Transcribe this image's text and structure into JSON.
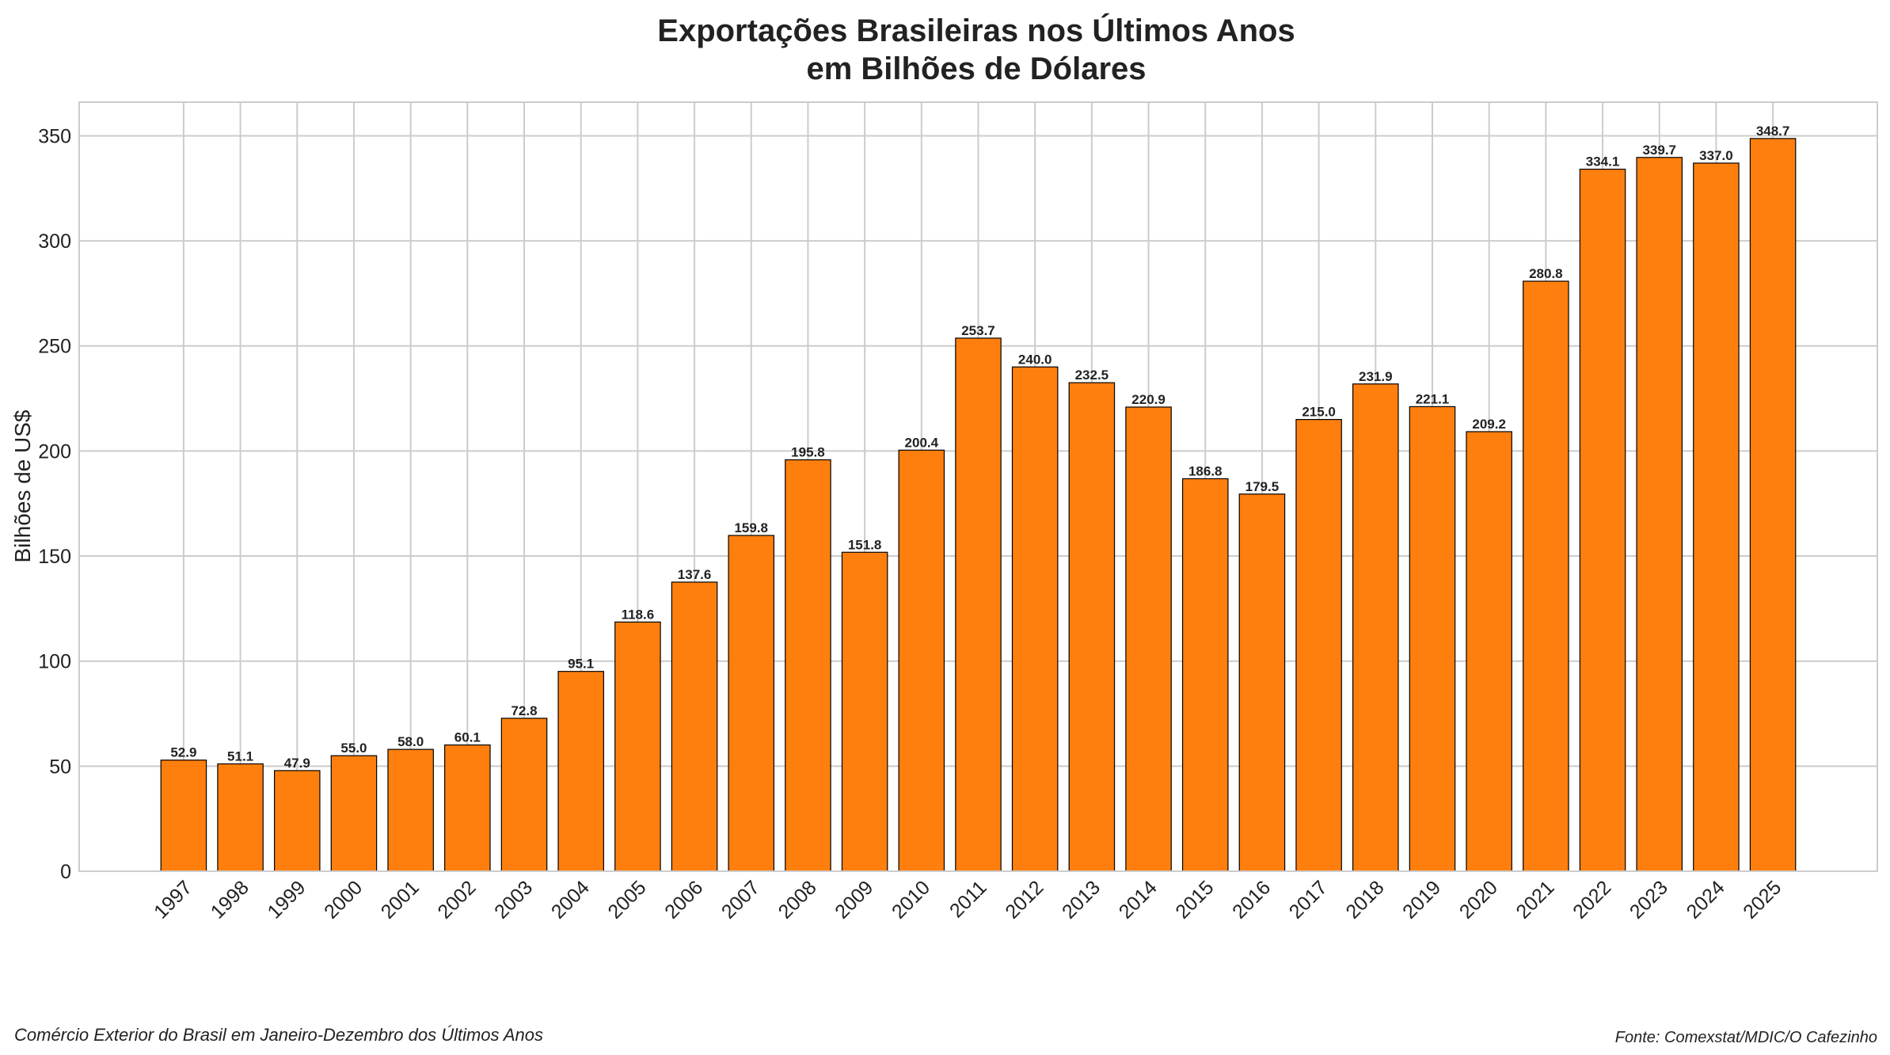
{
  "chart_data": {
    "type": "bar",
    "title": [
      "Exportações Brasileiras nos Últimos Anos",
      "em Bilhões de Dólares"
    ],
    "xlabel": "",
    "ylabel": "Bilhões de US$",
    "ylim": [
      0,
      366
    ],
    "yticks": [
      0,
      50,
      100,
      150,
      200,
      250,
      300,
      350
    ],
    "grid": true,
    "bar_color": "#ff7f0e",
    "edge_color": "#000000",
    "categories": [
      "1997",
      "1998",
      "1999",
      "2000",
      "2001",
      "2002",
      "2003",
      "2004",
      "2005",
      "2006",
      "2007",
      "2008",
      "2009",
      "2010",
      "2011",
      "2012",
      "2013",
      "2014",
      "2015",
      "2016",
      "2017",
      "2018",
      "2019",
      "2020",
      "2021",
      "2022",
      "2023",
      "2024",
      "2025"
    ],
    "values": [
      52.9,
      51.1,
      47.9,
      55.0,
      58.0,
      60.1,
      72.8,
      95.1,
      118.6,
      137.6,
      159.8,
      195.8,
      151.8,
      200.4,
      253.7,
      240.0,
      232.5,
      220.9,
      186.8,
      179.5,
      215.0,
      231.9,
      221.1,
      209.2,
      280.8,
      334.1,
      339.7,
      337.0,
      348.7
    ],
    "footer_left": "Comércio Exterior do Brasil em Janeiro-Dezembro dos Últimos Anos",
    "footer_right": "Fonte: Comexstat/MDIC/O Cafezinho"
  }
}
